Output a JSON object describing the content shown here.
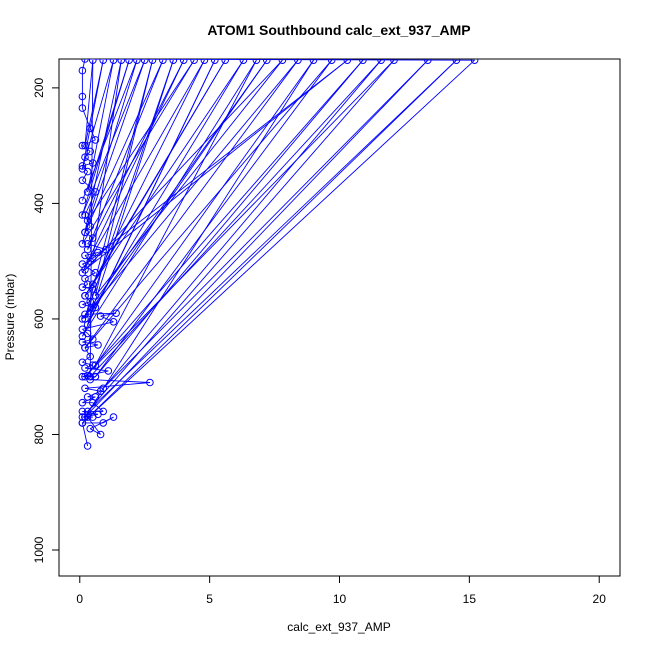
{
  "chart_data": {
    "type": "line",
    "title": "ATOM1 Southbound calc_ext_937_AMP",
    "xlabel": "calc_ext_937_AMP",
    "ylabel": "Pressure (mbar)",
    "xlim": [
      -0.8,
      20.8
    ],
    "ylim": [
      1045,
      150
    ],
    "y_reversed": true,
    "x_ticks": [
      0,
      5,
      10,
      15,
      20
    ],
    "x_tick_labels": [
      "0",
      "5",
      "10",
      "15",
      "20"
    ],
    "y_ticks": [
      200,
      400,
      600,
      800,
      1000
    ],
    "y_tick_labels": [
      "200",
      "400",
      "600",
      "800",
      "1000"
    ],
    "grid": false,
    "legend": "none",
    "series": [
      {
        "color": "#0000ff",
        "marker": "open-circle",
        "points": [
          [
            0.3,
            820
          ],
          [
            0.1,
            780
          ],
          [
            0.9,
            780
          ],
          [
            1.3,
            770
          ],
          [
            0.4,
            790
          ],
          [
            0.8,
            800
          ],
          [
            0.3,
            770
          ],
          [
            0.2,
            770
          ],
          [
            0.5,
            770
          ],
          [
            0.1,
            770
          ],
          [
            0.7,
            765
          ],
          [
            0.1,
            760
          ],
          [
            0.9,
            760
          ],
          [
            0.5,
            745
          ],
          [
            0.1,
            745
          ],
          [
            0.6,
            735
          ],
          [
            0.3,
            735
          ],
          [
            0.8,
            725
          ],
          [
            0.2,
            720
          ],
          [
            2.7,
            710
          ],
          [
            0.4,
            705
          ],
          [
            0.6,
            700
          ],
          [
            0.1,
            700
          ],
          [
            0.3,
            698
          ],
          [
            1.1,
            690
          ],
          [
            0.2,
            685
          ],
          [
            0.5,
            680
          ],
          [
            0.1,
            675
          ],
          [
            0.4,
            665
          ],
          [
            0.2,
            650
          ],
          [
            0.7,
            645
          ],
          [
            0.1,
            640
          ],
          [
            0.5,
            635
          ],
          [
            0.3,
            625
          ],
          [
            0.1,
            618
          ],
          [
            1.3,
            605
          ],
          [
            0.8,
            595
          ],
          [
            1.4,
            590
          ],
          [
            0.2,
            592
          ],
          [
            0.6,
            580
          ],
          [
            0.1,
            575
          ],
          [
            0.4,
            570
          ],
          [
            0.2,
            560
          ],
          [
            0.5,
            548
          ],
          [
            0.1,
            545
          ],
          [
            0.3,
            540
          ],
          [
            0.2,
            530
          ],
          [
            0.6,
            520
          ],
          [
            0.1,
            505
          ],
          [
            0.4,
            500
          ],
          [
            0.2,
            490
          ],
          [
            0.7,
            485
          ],
          [
            1.0,
            480
          ],
          [
            0.3,
            470
          ],
          [
            0.5,
            460
          ],
          [
            0.2,
            450
          ],
          [
            0.4,
            440
          ],
          [
            0.2,
            420
          ],
          [
            0.6,
            380
          ],
          [
            0.1,
            360
          ],
          [
            0.3,
            345
          ],
          [
            0.1,
            335
          ],
          [
            0.5,
            330
          ],
          [
            0.2,
            320
          ],
          [
            0.4,
            310
          ],
          [
            0.1,
            300
          ],
          [
            0.6,
            290
          ],
          [
            0.4,
            270
          ],
          [
            0.1,
            235
          ],
          [
            0.1,
            215
          ],
          [
            0.1,
            170
          ],
          [
            0.2,
            150
          ],
          [
            15.2,
            152
          ],
          [
            0.1,
            780
          ],
          [
            14.5,
            152
          ],
          [
            0.3,
            760
          ],
          [
            12.1,
            152
          ],
          [
            0.2,
            700
          ],
          [
            10.9,
            152
          ],
          [
            0.6,
            700
          ],
          [
            9.7,
            152
          ],
          [
            0.2,
            650
          ],
          [
            8.4,
            152
          ],
          [
            0.1,
            600
          ],
          [
            7.2,
            152
          ],
          [
            0.4,
            590
          ],
          [
            6.3,
            152
          ],
          [
            0.2,
            560
          ],
          [
            5.6,
            152
          ],
          [
            0.5,
            540
          ],
          [
            4.8,
            152
          ],
          [
            0.1,
            520
          ],
          [
            4.0,
            152
          ],
          [
            0.3,
            480
          ],
          [
            3.2,
            152
          ],
          [
            0.2,
            450
          ],
          [
            2.5,
            152
          ],
          [
            0.1,
            420
          ],
          [
            1.9,
            152
          ],
          [
            0.3,
            380
          ],
          [
            1.3,
            152
          ],
          [
            0.1,
            340
          ],
          [
            0.9,
            152
          ],
          [
            0.2,
            300
          ],
          [
            0.5,
            152
          ],
          [
            0.4,
            700
          ],
          [
            11.6,
            152
          ],
          [
            0.9,
            720
          ],
          [
            13.4,
            152
          ],
          [
            0.2,
            770
          ],
          [
            9.0,
            152
          ],
          [
            0.6,
            680
          ],
          [
            6.8,
            152
          ],
          [
            0.1,
            630
          ],
          [
            5.2,
            152
          ],
          [
            0.3,
            610
          ],
          [
            3.6,
            152
          ],
          [
            0.2,
            600
          ],
          [
            2.8,
            152
          ],
          [
            0.6,
            560
          ],
          [
            7.8,
            152
          ],
          [
            0.2,
            515
          ],
          [
            10.3,
            152
          ],
          [
            0.5,
            495
          ],
          [
            1.6,
            152
          ],
          [
            0.1,
            470
          ],
          [
            4.4,
            152
          ],
          [
            0.3,
            430
          ],
          [
            2.2,
            152
          ],
          [
            0.1,
            395
          ]
        ]
      }
    ]
  }
}
